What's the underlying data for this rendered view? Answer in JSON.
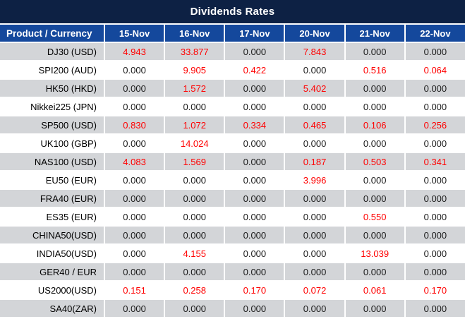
{
  "chart_data": {
    "type": "table",
    "title": "Dividends Rates",
    "product_header": "Product / Currency",
    "date_headers": [
      "15-Nov",
      "16-Nov",
      "17-Nov",
      "20-Nov",
      "21-Nov",
      "22-Nov"
    ],
    "rows": [
      {
        "product": "DJ30 (USD)",
        "values": [
          "4.943",
          "33.877",
          "0.000",
          "7.843",
          "0.000",
          "0.000"
        ],
        "red_flags": [
          1,
          1,
          0,
          1,
          0,
          0
        ]
      },
      {
        "product": "SPI200 (AUD)",
        "values": [
          "0.000",
          "9.905",
          "0.422",
          "0.000",
          "0.516",
          "0.064"
        ],
        "red_flags": [
          0,
          1,
          1,
          0,
          1,
          1
        ]
      },
      {
        "product": "HK50 (HKD)",
        "values": [
          "0.000",
          "1.572",
          "0.000",
          "5.402",
          "0.000",
          "0.000"
        ],
        "red_flags": [
          0,
          1,
          0,
          1,
          0,
          0
        ]
      },
      {
        "product": "Nikkei225 (JPN)",
        "values": [
          "0.000",
          "0.000",
          "0.000",
          "0.000",
          "0.000",
          "0.000"
        ],
        "red_flags": [
          0,
          0,
          0,
          0,
          0,
          0
        ]
      },
      {
        "product": "SP500 (USD)",
        "values": [
          "0.830",
          "1.072",
          "0.334",
          "0.465",
          "0.106",
          "0.256"
        ],
        "red_flags": [
          1,
          1,
          1,
          1,
          1,
          1
        ]
      },
      {
        "product": "UK100 (GBP)",
        "values": [
          "0.000",
          "14.024",
          "0.000",
          "0.000",
          "0.000",
          "0.000"
        ],
        "red_flags": [
          0,
          1,
          0,
          0,
          0,
          0
        ]
      },
      {
        "product": "NAS100 (USD)",
        "values": [
          "4.083",
          "1.569",
          "0.000",
          "0.187",
          "0.503",
          "0.341"
        ],
        "red_flags": [
          1,
          1,
          0,
          1,
          1,
          1
        ]
      },
      {
        "product": "EU50 (EUR)",
        "values": [
          "0.000",
          "0.000",
          "0.000",
          "3.996",
          "0.000",
          "0.000"
        ],
        "red_flags": [
          0,
          0,
          0,
          1,
          0,
          0
        ]
      },
      {
        "product": "FRA40 (EUR)",
        "values": [
          "0.000",
          "0.000",
          "0.000",
          "0.000",
          "0.000",
          "0.000"
        ],
        "red_flags": [
          0,
          0,
          0,
          0,
          0,
          0
        ]
      },
      {
        "product": "ES35 (EUR)",
        "values": [
          "0.000",
          "0.000",
          "0.000",
          "0.000",
          "0.550",
          "0.000"
        ],
        "red_flags": [
          0,
          0,
          0,
          0,
          1,
          0
        ]
      },
      {
        "product": "CHINA50(USD)",
        "values": [
          "0.000",
          "0.000",
          "0.000",
          "0.000",
          "0.000",
          "0.000"
        ],
        "red_flags": [
          0,
          0,
          0,
          0,
          0,
          0
        ]
      },
      {
        "product": "INDIA50(USD)",
        "values": [
          "0.000",
          "4.155",
          "0.000",
          "0.000",
          "13.039",
          "0.000"
        ],
        "red_flags": [
          0,
          1,
          0,
          0,
          1,
          0
        ]
      },
      {
        "product": "GER40 / EUR",
        "values": [
          "0.000",
          "0.000",
          "0.000",
          "0.000",
          "0.000",
          "0.000"
        ],
        "red_flags": [
          0,
          0,
          0,
          0,
          0,
          0
        ]
      },
      {
        "product": "US2000(USD)",
        "values": [
          "0.151",
          "0.258",
          "0.170",
          "0.072",
          "0.061",
          "0.170"
        ],
        "red_flags": [
          1,
          1,
          1,
          1,
          1,
          1
        ]
      },
      {
        "product": "SA40(ZAR)",
        "values": [
          "0.000",
          "0.000",
          "0.000",
          "0.000",
          "0.000",
          "0.000"
        ],
        "red_flags": [
          0,
          0,
          0,
          0,
          0,
          0
        ]
      }
    ]
  },
  "colors": {
    "title_bg": "#0d2144",
    "header_bg": "#14489c",
    "header_text": "#ffffff",
    "row_alt_bg": "#d3d5d8",
    "grid_line": "#ffffff",
    "value_red": "#ff0000",
    "value_black": "#1a1a1a"
  }
}
